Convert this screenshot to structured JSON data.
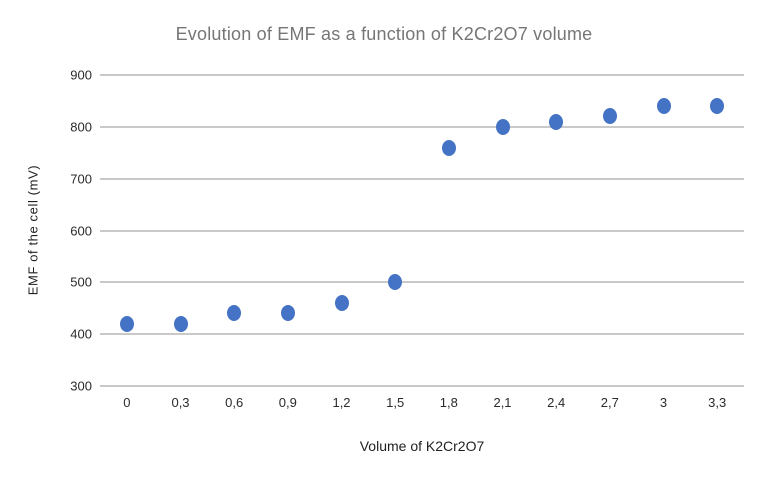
{
  "chart_data": {
    "type": "scatter",
    "title": "Evolution of EMF as a function of K2Cr2O7  volume",
    "xlabel": "Volume of K2Cr2O7",
    "ylabel": "EMF of the cell (mV)",
    "categories": [
      "0",
      "0,3",
      "0,6",
      "0,9",
      "1,2",
      "1,5",
      "1,8",
      "2,1",
      "2,4",
      "2,7",
      "3",
      "3,3"
    ],
    "x_values": [
      0,
      0.3,
      0.6,
      0.9,
      1.2,
      1.5,
      1.8,
      2.1,
      2.4,
      2.7,
      3.0,
      3.3
    ],
    "values": [
      420,
      420,
      440,
      440,
      460,
      500,
      760,
      800,
      810,
      820,
      840,
      840
    ],
    "series_name": "EMF of the cell (mV)",
    "ylim": [
      300,
      900
    ],
    "yticks": [
      300,
      400,
      500,
      600,
      700,
      800,
      900
    ],
    "grid": "horizontal",
    "legend": "none",
    "marker_color": "#4472C4",
    "gridline_color": "#c9c9c9",
    "title_color": "#767676",
    "axis_text_color": "#2b2b2b"
  }
}
